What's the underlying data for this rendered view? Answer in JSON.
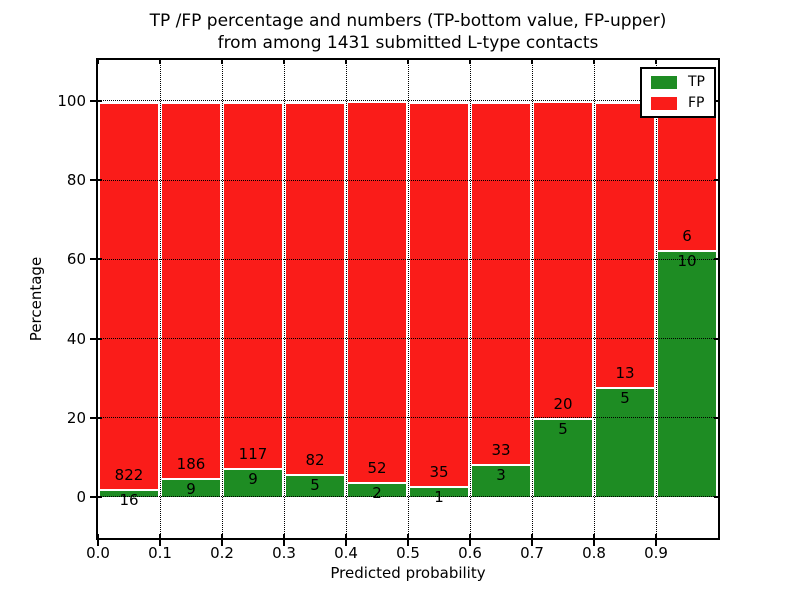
{
  "figure": {
    "title_line1": "TP /FP percentage and numbers (TP-bottom value, FP-upper)",
    "title_line2": "from among 1431 submitted L-type contacts",
    "xlabel": "Predicted probability",
    "ylabel": "Percentage"
  },
  "legend": {
    "position": "upper right",
    "items": [
      {
        "label": "TP",
        "color": "#1e8c23"
      },
      {
        "label": "FP",
        "color": "#fa1c19"
      }
    ]
  },
  "chart_data": {
    "type": "bar",
    "stacked": true,
    "normalized_to_percent": true,
    "title": "TP /FP percentage and numbers (TP-bottom value, FP-upper) from among 1431 submitted L-type contacts",
    "xlabel": "Predicted probability",
    "ylabel": "Percentage",
    "total_contacts": 1431,
    "annotation_format": "FP count above TP/FP boundary, TP count below boundary",
    "bins": [
      {
        "x_start": 0.0,
        "x_end": 0.1,
        "tp": 16,
        "fp": 822
      },
      {
        "x_start": 0.1,
        "x_end": 0.2,
        "tp": 9,
        "fp": 186
      },
      {
        "x_start": 0.2,
        "x_end": 0.3,
        "tp": 9,
        "fp": 117
      },
      {
        "x_start": 0.3,
        "x_end": 0.4,
        "tp": 5,
        "fp": 82
      },
      {
        "x_start": 0.4,
        "x_end": 0.5,
        "tp": 2,
        "fp": 52
      },
      {
        "x_start": 0.5,
        "x_end": 0.6,
        "tp": 1,
        "fp": 35
      },
      {
        "x_start": 0.6,
        "x_end": 0.7,
        "tp": 3,
        "fp": 33
      },
      {
        "x_start": 0.7,
        "x_end": 0.8,
        "tp": 5,
        "fp": 20
      },
      {
        "x_start": 0.8,
        "x_end": 0.9,
        "tp": 5,
        "fp": 13
      },
      {
        "x_start": 0.9,
        "x_end": 1.0,
        "tp": 10,
        "fp": 6
      }
    ],
    "series_colors": {
      "tp": "#1e8c23",
      "fp": "#fa1c19"
    },
    "xlim": [
      0.0,
      1.0
    ],
    "ylim": [
      -10.5,
      110.5
    ],
    "xtick_labels": [
      "0.0",
      "0.1",
      "0.2",
      "0.3",
      "0.4",
      "0.5",
      "0.6",
      "0.7",
      "0.8",
      "0.9"
    ],
    "yticks": [
      0,
      20,
      40,
      60,
      80,
      100
    ],
    "grid": "dotted black, drawn over bars",
    "legend_entries": [
      "TP",
      "FP"
    ]
  }
}
